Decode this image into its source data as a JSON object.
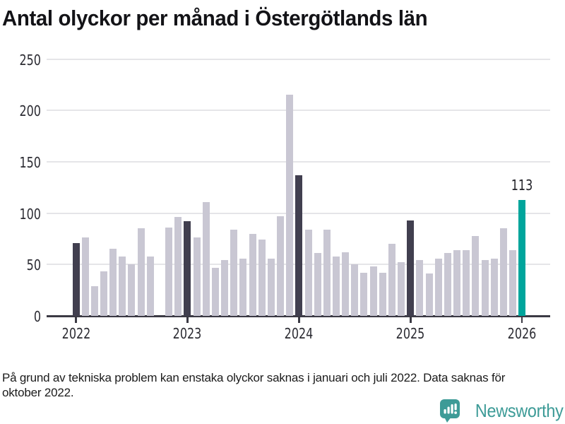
{
  "title": "Antal olyckor per månad i Östergötlands län",
  "footnote": {
    "full": "På grund av tekniska problem kan enstaka olyckor saknas i januari och juli 2022. Data saknas för oktober 2022.",
    "line1": "På grund av tekniska problem kan enstaka olyckor saknas i januari och juli 2022. Data saknas för",
    "line2": "oktober 2022."
  },
  "branding": {
    "name": "Newsworthy",
    "icon": "newsworthy-speech-bubble-bar-chart-icon",
    "color": "#3d9b97"
  },
  "colors": {
    "bar_default": "#c9c7d3",
    "bar_january": "#413f4f",
    "bar_highlight": "#00a59c",
    "gridline": "#e5e5e8",
    "axis": "#3b3a44",
    "tick_text": "#2c2c33",
    "title_text": "#131317"
  },
  "chart_data": {
    "type": "bar",
    "title": "Antal olyckor per månad i Östergötlands län",
    "xlabel": "",
    "ylabel": "",
    "ylim": [
      0,
      250
    ],
    "y_ticks": [
      0,
      50,
      100,
      150,
      200,
      250
    ],
    "x_tick_labels": [
      "2022",
      "2023",
      "2024",
      "2025",
      "2026"
    ],
    "grid": "horizontal-only",
    "legend": "none",
    "bar_color_roles": {
      "default": "light gray bar",
      "january": "dark bar marking January of each year",
      "highlight": "teal bar for latest month (January 2026)",
      "missing": "no bar drawn (data missing)"
    },
    "annotation": {
      "month": "2026-01",
      "text": "113"
    },
    "missing_months": [
      "2022-10"
    ],
    "series": [
      {
        "name": "Antal olyckor",
        "points": [
          [
            "2022-01",
            71,
            "january"
          ],
          [
            "2022-02",
            76,
            "default"
          ],
          [
            "2022-03",
            29,
            "default"
          ],
          [
            "2022-04",
            43,
            "default"
          ],
          [
            "2022-05",
            65,
            "default"
          ],
          [
            "2022-06",
            58,
            "default"
          ],
          [
            "2022-07",
            50,
            "default"
          ],
          [
            "2022-08",
            85,
            "default"
          ],
          [
            "2022-09",
            58,
            "default"
          ],
          [
            "2022-10",
            null,
            "missing"
          ],
          [
            "2022-11",
            86,
            "default"
          ],
          [
            "2022-12",
            96,
            "default"
          ],
          [
            "2023-01",
            92,
            "january"
          ],
          [
            "2023-02",
            76,
            "default"
          ],
          [
            "2023-03",
            111,
            "default"
          ],
          [
            "2023-04",
            47,
            "default"
          ],
          [
            "2023-05",
            54,
            "default"
          ],
          [
            "2023-06",
            84,
            "default"
          ],
          [
            "2023-07",
            56,
            "default"
          ],
          [
            "2023-08",
            80,
            "default"
          ],
          [
            "2023-09",
            74,
            "default"
          ],
          [
            "2023-10",
            56,
            "default"
          ],
          [
            "2023-11",
            97,
            "default"
          ],
          [
            "2023-12",
            215,
            "default"
          ],
          [
            "2024-01",
            137,
            "january"
          ],
          [
            "2024-02",
            84,
            "default"
          ],
          [
            "2024-03",
            61,
            "default"
          ],
          [
            "2024-04",
            84,
            "default"
          ],
          [
            "2024-05",
            58,
            "default"
          ],
          [
            "2024-06",
            62,
            "default"
          ],
          [
            "2024-07",
            50,
            "default"
          ],
          [
            "2024-08",
            42,
            "default"
          ],
          [
            "2024-09",
            48,
            "default"
          ],
          [
            "2024-10",
            42,
            "default"
          ],
          [
            "2024-11",
            70,
            "default"
          ],
          [
            "2024-12",
            52,
            "default"
          ],
          [
            "2025-01",
            93,
            "january"
          ],
          [
            "2025-02",
            54,
            "default"
          ],
          [
            "2025-03",
            41,
            "default"
          ],
          [
            "2025-04",
            56,
            "default"
          ],
          [
            "2025-05",
            61,
            "default"
          ],
          [
            "2025-06",
            64,
            "default"
          ],
          [
            "2025-07",
            64,
            "default"
          ],
          [
            "2025-08",
            78,
            "default"
          ],
          [
            "2025-09",
            54,
            "default"
          ],
          [
            "2025-10",
            56,
            "default"
          ],
          [
            "2025-11",
            85,
            "default"
          ],
          [
            "2025-12",
            64,
            "default"
          ],
          [
            "2026-01",
            113,
            "highlight"
          ]
        ]
      }
    ]
  }
}
